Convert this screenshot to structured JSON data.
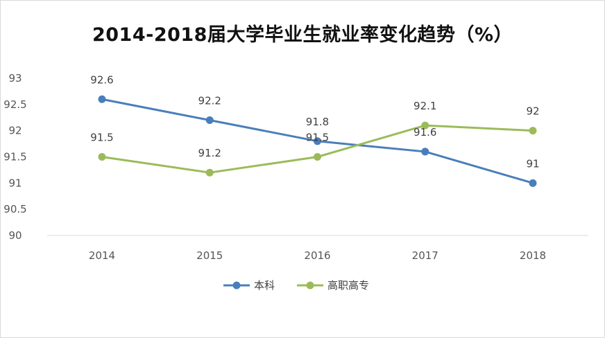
{
  "chart_data": {
    "type": "line",
    "title": "2014-2018届大学毕业生就业率变化趋势（%）",
    "categories": [
      "2014",
      "2015",
      "2016",
      "2017",
      "2018"
    ],
    "y_ticks": [
      "90",
      "90.5",
      "91",
      "91.5",
      "92",
      "92.5",
      "93"
    ],
    "ylim": [
      90,
      93
    ],
    "grid": false,
    "legend_position": "bottom",
    "series": [
      {
        "name": "本科",
        "color": "#4a7ebb",
        "values": [
          92.6,
          92.2,
          91.8,
          91.6,
          91.0
        ],
        "labels": [
          "92.6",
          "92.2",
          "91.8",
          "91.6",
          "91"
        ]
      },
      {
        "name": "高职高专",
        "color": "#9bbb59",
        "values": [
          91.5,
          91.2,
          91.5,
          92.1,
          92.0
        ],
        "labels": [
          "91.5",
          "91.2",
          "91.5",
          "92.1",
          "92"
        ]
      }
    ]
  }
}
